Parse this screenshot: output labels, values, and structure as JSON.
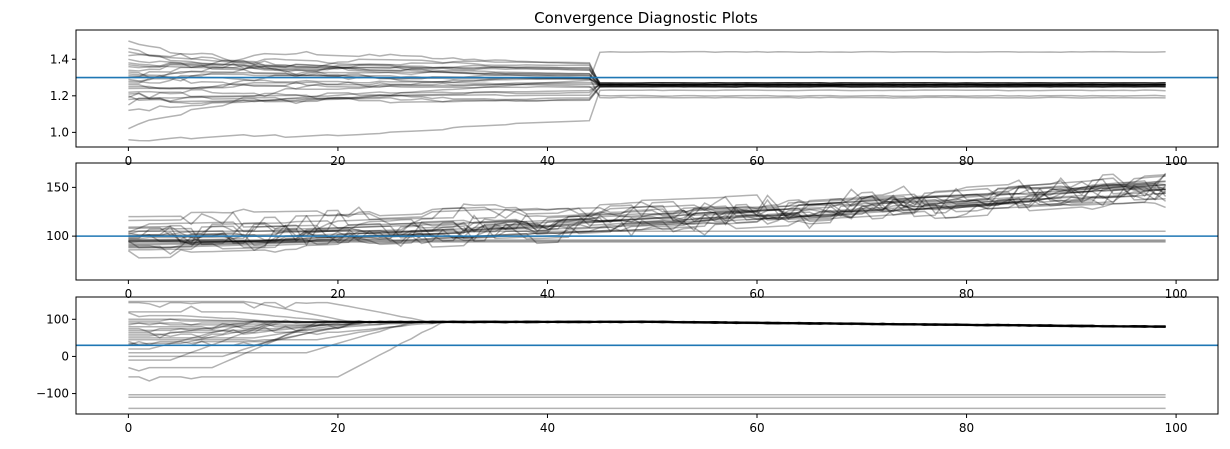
{
  "title": "Convergence Diagnostic Plots",
  "colors": {
    "trace": "#000000",
    "reference_line": "#1f77b4",
    "axes": "#000000"
  },
  "chart_data": [
    {
      "type": "line",
      "xlim": [
        -5,
        104
      ],
      "ylim": [
        0.92,
        1.56
      ],
      "x_ticks": [
        0,
        20,
        40,
        60,
        80,
        100
      ],
      "y_ticks": [
        1.0,
        1.2,
        1.4
      ],
      "y_tick_labels": [
        "1.0",
        "1.2",
        "1.4"
      ],
      "reference_value": 1.3,
      "x_range": [
        0,
        99
      ],
      "trace_count": 28,
      "trace_alpha": 0.3,
      "trace_starts": [
        1.02,
        1.5,
        1.4,
        0.96,
        1.12,
        1.28,
        1.38,
        1.25,
        1.18,
        1.33,
        1.44,
        1.2,
        1.3,
        1.36,
        1.24,
        1.15,
        1.46,
        1.22,
        1.34,
        1.27,
        1.31,
        1.21,
        1.29,
        1.37,
        1.26,
        1.19,
        1.32,
        1.42
      ],
      "trace_converged": [
        1.44,
        1.19,
        1.2,
        1.23,
        1.25,
        1.25,
        1.26,
        1.26,
        1.26,
        1.26,
        1.26,
        1.27,
        1.27,
        1.27,
        1.25,
        1.26,
        1.26,
        1.25,
        1.27,
        1.26,
        1.26,
        1.25,
        1.26,
        1.27,
        1.26,
        1.26,
        1.25,
        1.26
      ],
      "trace_settle_step": 45,
      "grid": false
    },
    {
      "type": "line",
      "xlim": [
        -5,
        104
      ],
      "ylim": [
        55,
        175
      ],
      "x_ticks": [
        0,
        20,
        40,
        60,
        80,
        100
      ],
      "y_ticks": [
        100,
        150
      ],
      "y_tick_labels": [
        "100",
        "150"
      ],
      "reference_value": 100,
      "x_range": [
        0,
        99
      ],
      "trace_count": 28,
      "trace_alpha": 0.3,
      "trace_starts": [
        120,
        100,
        95,
        90,
        85,
        110,
        98,
        92,
        88,
        105,
        102,
        97,
        93,
        115,
        100,
        96,
        91,
        108,
        99,
        94,
        89,
        104,
        101,
        95,
        87,
        112,
        98,
        103
      ],
      "trace_end_flat": [
        94,
        96,
        95,
        105
      ],
      "trace_end_trend": [
        145,
        150,
        155,
        148,
        142,
        160,
        152,
        146,
        150,
        138,
        156,
        149,
        144,
        151,
        147,
        153,
        140,
        158,
        148,
        145,
        150,
        143,
        155,
        147
      ],
      "grid": false
    },
    {
      "type": "line",
      "xlim": [
        -5,
        104
      ],
      "ylim": [
        -155,
        160
      ],
      "x_ticks": [
        0,
        20,
        40,
        60,
        80,
        100
      ],
      "y_ticks": [
        -100,
        0,
        100
      ],
      "y_tick_labels": [
        "−100",
        "0",
        "100"
      ],
      "reference_value": 30,
      "x_range": [
        0,
        99
      ],
      "trace_count": 28,
      "trace_alpha": 0.3,
      "trace_flat": [
        -103,
        -110,
        -140
      ],
      "trace_starts": [
        -55,
        -30,
        0,
        20,
        40,
        60,
        80,
        100,
        120,
        145,
        150,
        30,
        50,
        70,
        90,
        110,
        10,
        -10,
        35,
        55,
        75,
        95,
        65,
        85,
        45
      ],
      "trace_plateau": 93,
      "trace_end": 80,
      "grid": false
    }
  ]
}
